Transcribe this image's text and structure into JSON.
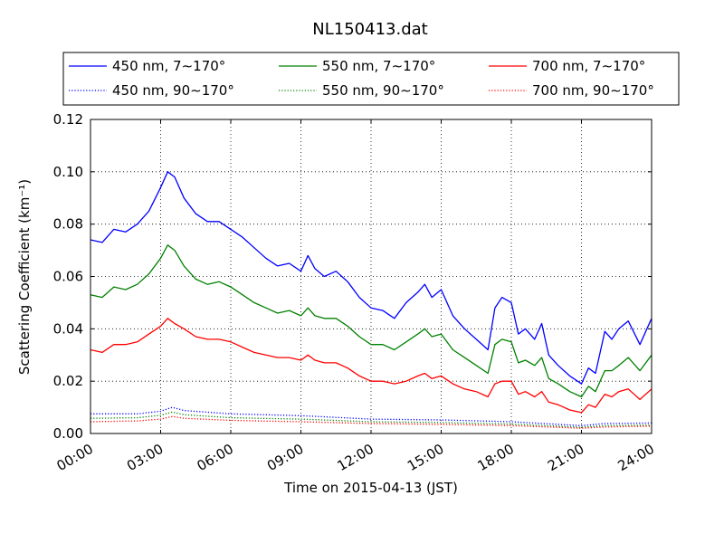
{
  "chart_data": {
    "type": "line",
    "title": "NL150413.dat",
    "xlabel": "Time on 2015-04-13 (JST)",
    "ylabel": "Scattering Coefficient (km⁻¹)",
    "xlim": [
      0,
      24
    ],
    "ylim": [
      0,
      0.12
    ],
    "x_ticks": [
      {
        "value": 0,
        "label": "00:00"
      },
      {
        "value": 3,
        "label": "03:00"
      },
      {
        "value": 6,
        "label": "06:00"
      },
      {
        "value": 9,
        "label": "09:00"
      },
      {
        "value": 12,
        "label": "12:00"
      },
      {
        "value": 15,
        "label": "15:00"
      },
      {
        "value": 18,
        "label": "18:00"
      },
      {
        "value": 21,
        "label": "21:00"
      },
      {
        "value": 24,
        "label": "24:00"
      }
    ],
    "y_ticks": [
      {
        "value": 0,
        "label": "0.00"
      },
      {
        "value": 0.02,
        "label": "0.02"
      },
      {
        "value": 0.04,
        "label": "0.04"
      },
      {
        "value": 0.06,
        "label": "0.06"
      },
      {
        "value": 0.08,
        "label": "0.08"
      },
      {
        "value": 0.1,
        "label": "0.10"
      },
      {
        "value": 0.12,
        "label": "0.12"
      }
    ],
    "grid": true,
    "legend_position": "above plot, 3 columns",
    "series": [
      {
        "name": "450 nm, 7∼170°",
        "color": "#0000ff",
        "style": "solid",
        "x": [
          0,
          0.5,
          1,
          1.5,
          2,
          2.5,
          3,
          3.3,
          3.6,
          4,
          4.5,
          5,
          5.5,
          6,
          6.5,
          7,
          7.5,
          8,
          8.5,
          9,
          9.3,
          9.6,
          10,
          10.5,
          11,
          11.5,
          12,
          12.5,
          13,
          13.5,
          14,
          14.3,
          14.6,
          15,
          15.5,
          16,
          16.5,
          17,
          17.3,
          17.6,
          18,
          18.3,
          18.6,
          19,
          19.3,
          19.6,
          20,
          20.5,
          21,
          21.3,
          21.6,
          22,
          22.3,
          22.6,
          23,
          23.5,
          24
        ],
        "y": [
          0.074,
          0.073,
          0.078,
          0.077,
          0.08,
          0.085,
          0.094,
          0.1,
          0.098,
          0.09,
          0.084,
          0.081,
          0.081,
          0.078,
          0.075,
          0.071,
          0.067,
          0.064,
          0.065,
          0.062,
          0.068,
          0.063,
          0.06,
          0.062,
          0.058,
          0.052,
          0.048,
          0.047,
          0.044,
          0.05,
          0.054,
          0.057,
          0.052,
          0.055,
          0.045,
          0.04,
          0.036,
          0.032,
          0.048,
          0.052,
          0.05,
          0.038,
          0.04,
          0.036,
          0.042,
          0.03,
          0.026,
          0.022,
          0.019,
          0.025,
          0.023,
          0.039,
          0.036,
          0.04,
          0.043,
          0.034,
          0.044
        ]
      },
      {
        "name": "450 nm, 90∼170°",
        "color": "#0000ff",
        "style": "dotted",
        "x": [
          0,
          2,
          3,
          3.5,
          4,
          6,
          9,
          12,
          15,
          18,
          21,
          22,
          24
        ],
        "y": [
          0.0075,
          0.0075,
          0.0085,
          0.01,
          0.0088,
          0.0075,
          0.0068,
          0.0055,
          0.0052,
          0.0045,
          0.003,
          0.0038,
          0.004
        ]
      },
      {
        "name": "550 nm, 7∼170°",
        "color": "#008000",
        "style": "solid",
        "x": [
          0,
          0.5,
          1,
          1.5,
          2,
          2.5,
          3,
          3.3,
          3.6,
          4,
          4.5,
          5,
          5.5,
          6,
          6.5,
          7,
          7.5,
          8,
          8.5,
          9,
          9.3,
          9.6,
          10,
          10.5,
          11,
          11.5,
          12,
          12.5,
          13,
          13.5,
          14,
          14.3,
          14.6,
          15,
          15.5,
          16,
          16.5,
          17,
          17.3,
          17.6,
          18,
          18.3,
          18.6,
          19,
          19.3,
          19.6,
          20,
          20.5,
          21,
          21.3,
          21.6,
          22,
          22.3,
          22.6,
          23,
          23.5,
          24
        ],
        "y": [
          0.053,
          0.052,
          0.056,
          0.055,
          0.057,
          0.061,
          0.067,
          0.072,
          0.07,
          0.064,
          0.059,
          0.057,
          0.058,
          0.056,
          0.053,
          0.05,
          0.048,
          0.046,
          0.047,
          0.045,
          0.048,
          0.045,
          0.044,
          0.044,
          0.041,
          0.037,
          0.034,
          0.034,
          0.032,
          0.035,
          0.038,
          0.04,
          0.037,
          0.038,
          0.032,
          0.029,
          0.026,
          0.023,
          0.034,
          0.036,
          0.035,
          0.027,
          0.028,
          0.026,
          0.029,
          0.021,
          0.019,
          0.016,
          0.014,
          0.018,
          0.016,
          0.024,
          0.024,
          0.026,
          0.029,
          0.024,
          0.03
        ]
      },
      {
        "name": "550 nm, 90∼170°",
        "color": "#008000",
        "style": "dotted",
        "x": [
          0,
          2,
          3,
          3.5,
          4,
          6,
          9,
          12,
          15,
          18,
          21,
          22,
          24
        ],
        "y": [
          0.0058,
          0.006,
          0.007,
          0.0082,
          0.0072,
          0.006,
          0.0055,
          0.0045,
          0.0042,
          0.0036,
          0.0024,
          0.003,
          0.0032
        ]
      },
      {
        "name": "700 nm, 7∼170°",
        "color": "#ff0000",
        "style": "solid",
        "x": [
          0,
          0.5,
          1,
          1.5,
          2,
          2.5,
          3,
          3.3,
          3.6,
          4,
          4.5,
          5,
          5.5,
          6,
          6.5,
          7,
          7.5,
          8,
          8.5,
          9,
          9.3,
          9.6,
          10,
          10.5,
          11,
          11.5,
          12,
          12.5,
          13,
          13.5,
          14,
          14.3,
          14.6,
          15,
          15.5,
          16,
          16.5,
          17,
          17.3,
          17.6,
          18,
          18.3,
          18.6,
          19,
          19.3,
          19.6,
          20,
          20.5,
          21,
          21.3,
          21.6,
          22,
          22.3,
          22.6,
          23,
          23.5,
          24
        ],
        "y": [
          0.032,
          0.031,
          0.034,
          0.034,
          0.035,
          0.038,
          0.041,
          0.044,
          0.042,
          0.04,
          0.037,
          0.036,
          0.036,
          0.035,
          0.033,
          0.031,
          0.03,
          0.029,
          0.029,
          0.028,
          0.03,
          0.028,
          0.027,
          0.027,
          0.025,
          0.022,
          0.02,
          0.02,
          0.019,
          0.02,
          0.022,
          0.023,
          0.021,
          0.022,
          0.019,
          0.017,
          0.016,
          0.014,
          0.019,
          0.02,
          0.02,
          0.015,
          0.016,
          0.014,
          0.016,
          0.012,
          0.011,
          0.009,
          0.008,
          0.011,
          0.01,
          0.015,
          0.014,
          0.016,
          0.017,
          0.013,
          0.017
        ]
      },
      {
        "name": "700 nm, 90∼170°",
        "color": "#ff0000",
        "style": "dotted",
        "x": [
          0,
          2,
          3,
          3.5,
          4,
          6,
          9,
          12,
          15,
          18,
          21,
          22,
          24
        ],
        "y": [
          0.0045,
          0.0048,
          0.0055,
          0.0065,
          0.0058,
          0.005,
          0.0045,
          0.0038,
          0.0035,
          0.003,
          0.002,
          0.0025,
          0.0028
        ]
      }
    ]
  }
}
